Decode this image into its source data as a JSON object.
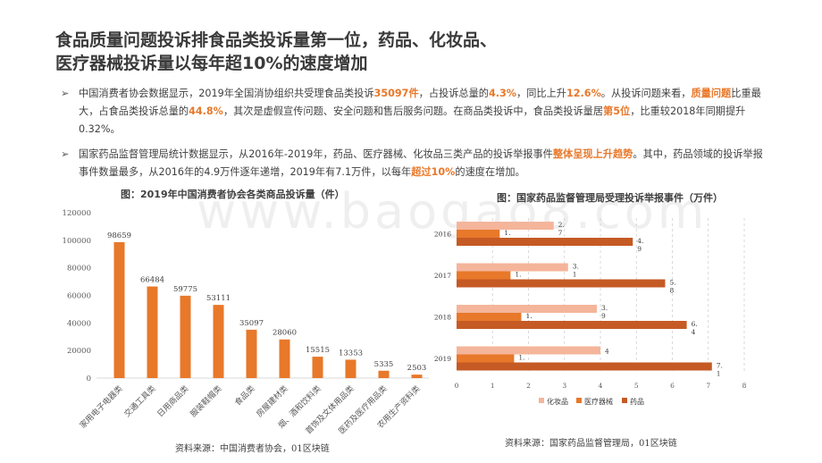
{
  "title": {
    "line1": "食品质量问题投诉排食品类投诉量第一位，药品、化妆品、",
    "line2": "医疗器械投诉量以每年超10%的速度增加"
  },
  "bullets": {
    "arrow": "➢",
    "b1": {
      "t1": " 中国消费者协会数据显示，2019年全国消协组织共受理食品类投诉",
      "h1": "35097件",
      "t2": "，占投诉总量的",
      "h2": "4.3%",
      "t3": "，同比上升",
      "h3": "12.6%",
      "t4": "。从投诉问题来看，",
      "h4": "质量问题",
      "t5": "比重最大，占食品类投诉总量的",
      "h5": "44.8%",
      "t6": "，其次是虚假宣传问题、安全问题和售后服务问题。在商品类投诉中，食品类投诉量居",
      "h6": "第5位",
      "t7": "，比重较2018年同期提升0.32%。"
    },
    "b2": {
      "t1": "国家药品监督管理局统计数据显示，从2016年-2019年，药品、医疗器械、化妆品三类产品的投诉举报事件",
      "h1": "整体呈现上升趋势",
      "t2": "。其中，药品领域的投诉举报事件数量最多，从2016年的4.9万件逐年递增，2019年有7.1万件，以每年",
      "h2": "超过10%",
      "t3": "的速度在增加。"
    }
  },
  "watermark": "www.baogao8.com",
  "chart1_title": "图：2019年中国消费者协会各类商品投诉量（件）",
  "chart2_title": "图：国家药品监督管理局受理投诉举报事件（万件）",
  "source1": "资料来源：中国消费者协会，01区块链",
  "source2": "资料来源：国家药品监督管理局，01区块链",
  "colors": {
    "accent": "#e8782a",
    "bar_orange": "#e8782a",
    "cosmetics": "#f4b59a",
    "medical": "#e8782a",
    "drugs": "#c55a24"
  },
  "chart_data": [
    {
      "type": "bar",
      "title": "图：2019年中国消费者协会各类商品投诉量（件）",
      "categories": [
        "家用电子电器类",
        "交通工具类",
        "日用商品类",
        "服装鞋帽类",
        "食品类",
        "房屋建材类",
        "烟、酒和饮料类",
        "首饰及文体用品类",
        "医药及医疗用品类",
        "农用生产资料类"
      ],
      "values": [
        98659,
        66484,
        59775,
        53111,
        35097,
        28060,
        15515,
        13353,
        5335,
        2503
      ],
      "ylim": [
        0,
        120000
      ],
      "yticks": [
        0,
        20000,
        40000,
        60000,
        80000,
        100000,
        120000
      ],
      "grid": false
    },
    {
      "type": "bar",
      "orientation": "horizontal",
      "title": "图：国家药品监督管理局受理投诉举报事件（万件）",
      "categories": [
        "2016",
        "2017",
        "2018",
        "2019"
      ],
      "series": [
        {
          "name": "化妆品",
          "values": [
            2.7,
            3.1,
            3.9,
            4.0
          ],
          "labels": [
            "2.\n7",
            "3.\n1",
            "3.\n9",
            "4"
          ]
        },
        {
          "name": "医疗器械",
          "values": [
            1.2,
            1.5,
            1.8,
            1.6
          ],
          "labels": [
            "1.\n2",
            "1.\n5",
            "1.\n8",
            "1.\n6"
          ]
        },
        {
          "name": "药品",
          "values": [
            4.9,
            5.8,
            6.4,
            7.1
          ],
          "labels": [
            "4.\n9",
            "5.\n8",
            "6.\n4",
            "7.\n1"
          ]
        }
      ],
      "xlim": [
        0,
        8
      ],
      "xticks": [
        0,
        1,
        2,
        3,
        4,
        5,
        6,
        7,
        8
      ],
      "legend": "bottom",
      "grid": "dashed"
    }
  ]
}
